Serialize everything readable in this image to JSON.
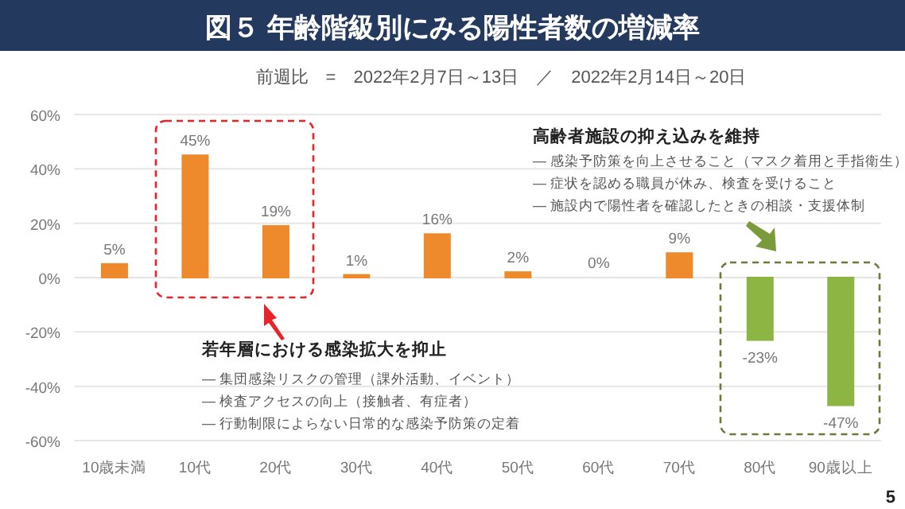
{
  "chart_data": {
    "type": "bar",
    "title": "図５ 年齢階級別にみる陽性者数の増減率",
    "subtitle": "前週比　=　2022年2月7日～13日　／　2022年2月14日～20日",
    "categories": [
      "10歳未満",
      "10代",
      "20代",
      "30代",
      "40代",
      "50代",
      "60代",
      "70代",
      "80代",
      "90歳以上"
    ],
    "values": [
      5,
      45,
      19,
      1,
      16,
      2,
      0,
      9,
      -23,
      -47
    ],
    "colors": [
      "#ee8a2c",
      "#ee8a2c",
      "#ee8a2c",
      "#ee8a2c",
      "#ee8a2c",
      "#ee8a2c",
      "#f6c8a0",
      "#ee8a2c",
      "#8cb544",
      "#8cb544"
    ],
    "value_labels": [
      "5%",
      "45%",
      "19%",
      "1%",
      "16%",
      "2%",
      "0%",
      "9%",
      "-23%",
      "-47%"
    ],
    "ylim": [
      -60,
      60
    ],
    "yticks": [
      {
        "value": 60,
        "label": "60%"
      },
      {
        "value": 40,
        "label": "40%"
      },
      {
        "value": 20,
        "label": "20%"
      },
      {
        "value": 0,
        "label": "0%"
      },
      {
        "value": -20,
        "label": "-20%"
      },
      {
        "value": -40,
        "label": "-40%"
      },
      {
        "value": -60,
        "label": "-60%"
      }
    ],
    "grid": "y",
    "annotations": [
      "若年層における感染拡大を抑止",
      "― 集団感染リスクの管理（課外活動、イベント）",
      "― 検査アクセスの向上（接触者、有症者）",
      "― 行動制限によらない日常的な感染予防策の定着",
      "高齢者施設の抑え込みを維持",
      "― 感染予防策を向上させること（マスク着用と手指衛生）",
      "― 症状を認める職員が休み、検査を受けること",
      "― 施設内で陽性者を確認したときの相談・支援体制",
      "5"
    ]
  }
}
